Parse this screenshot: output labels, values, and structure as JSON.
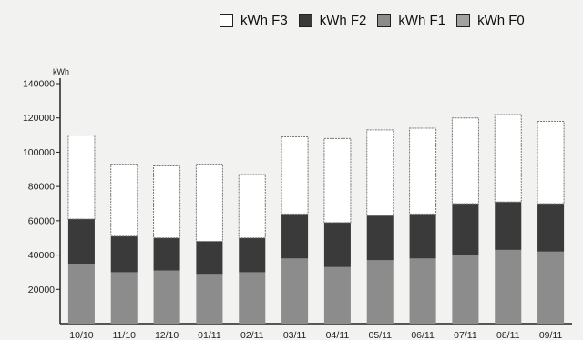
{
  "chart_data": {
    "type": "bar",
    "stacked": true,
    "title": "",
    "xlabel": "",
    "ylabel": "kWh",
    "ylim": [
      0,
      140000
    ],
    "yticks": [
      20000,
      40000,
      60000,
      80000,
      100000,
      120000,
      140000
    ],
    "legend_position": "top-right",
    "grid": false,
    "categories": [
      "10/10",
      "11/10",
      "12/10",
      "01/11",
      "02/11",
      "03/11",
      "04/11",
      "05/11",
      "06/11",
      "07/11",
      "08/11",
      "09/11"
    ],
    "series": [
      {
        "name": "kWh F0",
        "color": "#a2a2a2",
        "values": [
          0,
          0,
          0,
          0,
          0,
          0,
          0,
          0,
          0,
          0,
          0,
          0
        ]
      },
      {
        "name": "kWh F1",
        "color": "#8c8c8c",
        "values": [
          35000,
          30000,
          31000,
          29000,
          30000,
          38000,
          33000,
          37000,
          38000,
          40000,
          43000,
          42000
        ]
      },
      {
        "name": "kWh F2",
        "color": "#3a3a3a",
        "values": [
          26000,
          21000,
          19000,
          19000,
          20000,
          26000,
          26000,
          26000,
          26000,
          30000,
          28000,
          28000
        ]
      },
      {
        "name": "kWh F3",
        "color": "#ffffff",
        "values": [
          49000,
          42000,
          42000,
          45000,
          37000,
          45000,
          49000,
          50000,
          50000,
          50000,
          51000,
          48000
        ]
      }
    ]
  }
}
